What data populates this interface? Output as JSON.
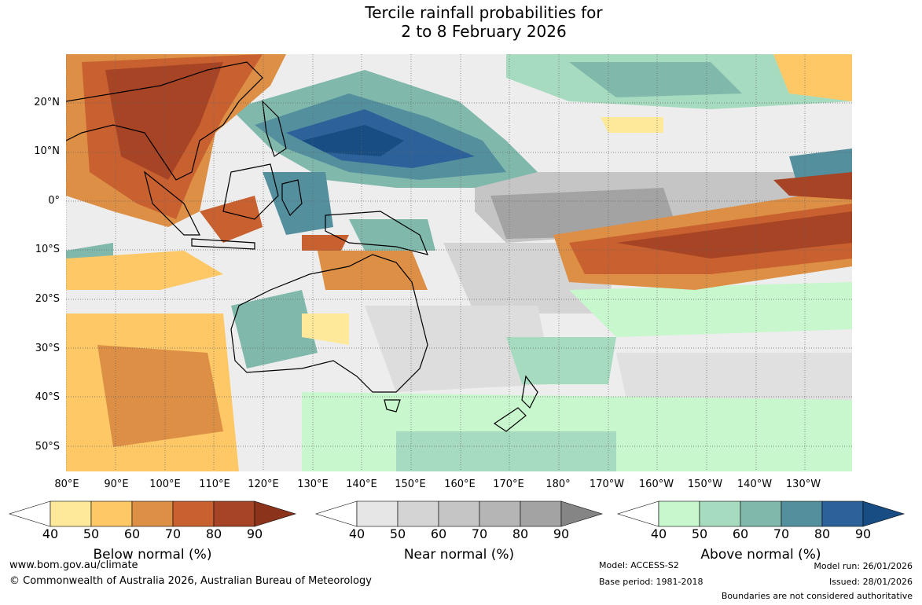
{
  "title": {
    "line1": "Tercile rainfall probabilities for",
    "line2": "2 to 8 February 2026"
  },
  "map": {
    "latitude_labels": [
      "20°N",
      "10°N",
      "0°",
      "10°S",
      "20°S",
      "30°S",
      "40°S",
      "50°S"
    ],
    "longitude_labels": [
      "80°E",
      "90°E",
      "100°E",
      "110°E",
      "120°E",
      "130°E",
      "140°E",
      "150°E",
      "160°E",
      "170°E",
      "180°",
      "170°W",
      "160°W",
      "150°W",
      "140°W",
      "130°W"
    ]
  },
  "legends": {
    "below": {
      "title": "Below normal (%)",
      "ticks": [
        "40",
        "50",
        "60",
        "70",
        "80",
        "90"
      ],
      "colors": [
        "#ffffff",
        "#fee99a",
        "#fdc865",
        "#dc8f45",
        "#c9602f",
        "#a64425",
        "#8c331c"
      ]
    },
    "near": {
      "title": "Near normal (%)",
      "ticks": [
        "40",
        "50",
        "60",
        "70",
        "80",
        "90"
      ],
      "colors": [
        "#ffffff",
        "#e6e6e6",
        "#d4d4d4",
        "#c5c5c5",
        "#b5b5b5",
        "#a3a3a3",
        "#858585"
      ]
    },
    "above": {
      "title": "Above normal (%)",
      "ticks": [
        "40",
        "50",
        "60",
        "70",
        "80",
        "90"
      ],
      "colors": [
        "#ffffff",
        "#c8f7cd",
        "#a6dbc0",
        "#80b8ab",
        "#548f9e",
        "#2d6199",
        "#174d82"
      ]
    }
  },
  "footer": {
    "website": "www.bom.gov.au/climate",
    "copyright": "© Commonwealth of Australia 2026, Australian Bureau of Meteorology",
    "model": "Model: ACCESS-S2",
    "base_period": "Base period: 1981-2018",
    "model_run": "Model run: 26/01/2026",
    "issued": "Issued: 28/01/2026",
    "disclaimer": "Boundaries are not considered authoritative"
  }
}
